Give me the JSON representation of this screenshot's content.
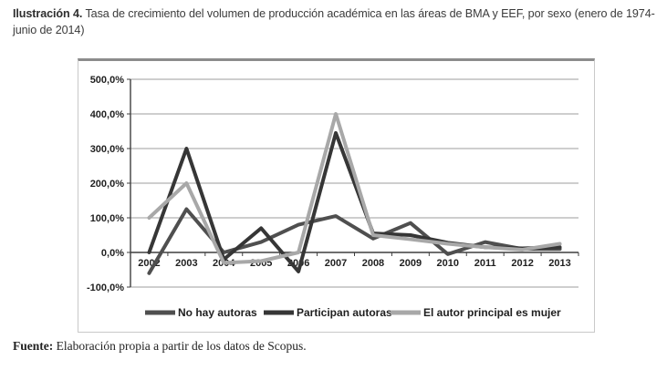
{
  "figure": {
    "caption_label": "Ilustración 4.",
    "caption_text": " Tasa de crecimiento del volumen de producción académica en las áreas de BMA y EEF, por sexo (enero de 1974-junio de 2014)",
    "source_label": "Fuente:",
    "source_text": " Elaboración propia a partir de los datos de Scopus."
  },
  "chart_data": {
    "type": "line",
    "x": [
      2002,
      2003,
      2004,
      2005,
      2006,
      2007,
      2008,
      2009,
      2010,
      2011,
      2012,
      2013
    ],
    "series": [
      {
        "name": "No hay autoras",
        "color": "#4f4f4f",
        "values": [
          -60,
          125,
          0,
          30,
          80,
          105,
          40,
          85,
          -5,
          30,
          10,
          10
        ]
      },
      {
        "name": "Participan autoras",
        "color": "#363636",
        "values": [
          0,
          300,
          -20,
          70,
          -55,
          345,
          55,
          50,
          28,
          15,
          12,
          15
        ]
      },
      {
        "name": "El autor principal es mujer",
        "color": "#a8a8a8",
        "values": [
          100,
          200,
          -30,
          -25,
          0,
          400,
          50,
          38,
          25,
          15,
          8,
          25
        ]
      }
    ],
    "ylabel": "",
    "xlabel": "",
    "ylim": [
      -100,
      500
    ],
    "ytick_values": [
      500,
      400,
      300,
      200,
      100,
      0,
      -100
    ],
    "ytick_labels": [
      "500,0%",
      "400,0%",
      "300,0%",
      "200,0%",
      "100,0%",
      "0,0%",
      "-100,0%"
    ],
    "grid": true,
    "legend_position": "bottom",
    "colors": {
      "grid": "#9d9d9d",
      "axis": "#3f3f3f"
    }
  }
}
